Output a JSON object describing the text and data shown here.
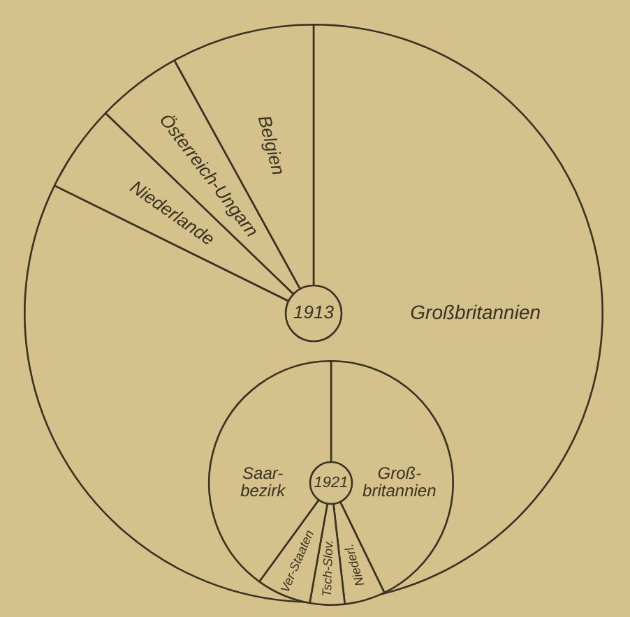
{
  "chart_data": [
    {
      "type": "pie",
      "title": "1913",
      "categories": [
        "Großbritannien",
        "Niederlande",
        "Österreich-Ungarn",
        "Belgien"
      ],
      "values": [
        82.3,
        4.9,
        4.8,
        8.0
      ],
      "colors": [
        "#d4c18b",
        "#d4c18b",
        "#d4c18b",
        "#d4c18b"
      ],
      "legend": false
    },
    {
      "type": "pie",
      "title": "1921",
      "categories": [
        "Groß-britannien",
        "Niederl.",
        "Tsch-Slov.",
        "Ver-Staaten",
        "Saar-bezirk"
      ],
      "values": [
        42.8,
        5.4,
        4.6,
        7.2,
        40.0
      ],
      "colors": [
        "#d4c18b",
        "#d4c18b",
        "#d4c18b",
        "#d4c18b",
        "#d4c18b"
      ],
      "legend": false
    }
  ]
}
